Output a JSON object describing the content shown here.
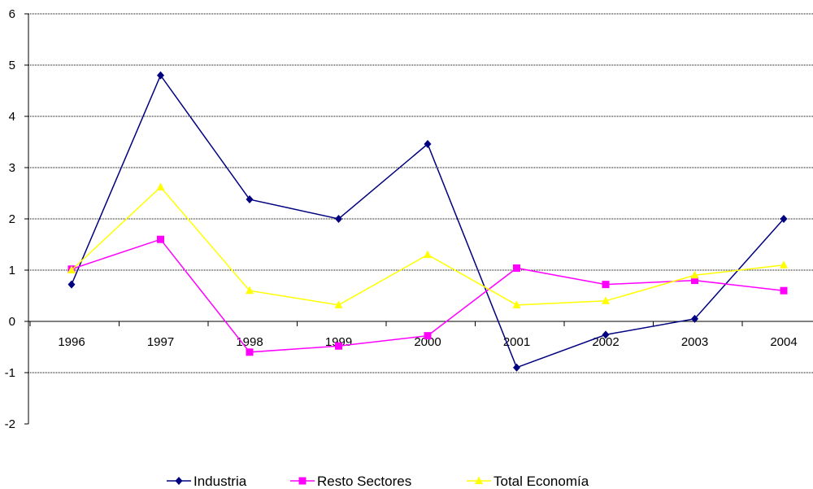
{
  "chart_data": {
    "type": "line",
    "categories": [
      "1996",
      "1997",
      "1998",
      "1999",
      "2000",
      "2001",
      "2002",
      "2003",
      "2004"
    ],
    "series": [
      {
        "name": "Industria",
        "color": "#000080",
        "marker": "diamond",
        "values": [
          0.72,
          4.8,
          2.38,
          2.0,
          3.46,
          -0.9,
          -0.26,
          0.05,
          2.0
        ]
      },
      {
        "name": "Resto Sectores",
        "color": "#ff00ff",
        "marker": "square",
        "values": [
          1.02,
          1.6,
          -0.6,
          -0.48,
          -0.28,
          1.04,
          0.72,
          0.8,
          0.6
        ]
      },
      {
        "name": "Total Economía",
        "color": "#ffff00",
        "marker": "triangle",
        "values": [
          1.0,
          2.62,
          0.6,
          0.32,
          1.3,
          0.32,
          0.4,
          0.9,
          1.1
        ]
      }
    ],
    "ylim": [
      -2,
      6
    ],
    "yticks": [
      "-2",
      "-1",
      "0",
      "1",
      "2",
      "3",
      "4",
      "5",
      "6"
    ],
    "grid": true,
    "legend_position": "bottom"
  }
}
